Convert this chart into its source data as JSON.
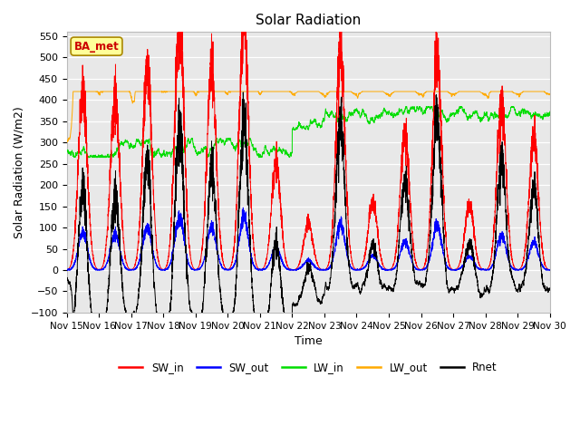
{
  "title": "Solar Radiation",
  "xlabel": "Time",
  "ylabel": "Solar Radiation (W/m2)",
  "ylim": [
    -100,
    560
  ],
  "colors": {
    "SW_in": "#ff0000",
    "SW_out": "#0000ff",
    "LW_in": "#00dd00",
    "LW_out": "#ffaa00",
    "Rnet": "#000000"
  },
  "legend_label": "BA_met",
  "sw_peaks": [
    420,
    410,
    470,
    600,
    480,
    600,
    250,
    110,
    510,
    160,
    325,
    510,
    150,
    400,
    310
  ],
  "lw_in_base": 285,
  "lw_out_base": 305,
  "night_rnet": -30,
  "sw_ratio": 0.21
}
